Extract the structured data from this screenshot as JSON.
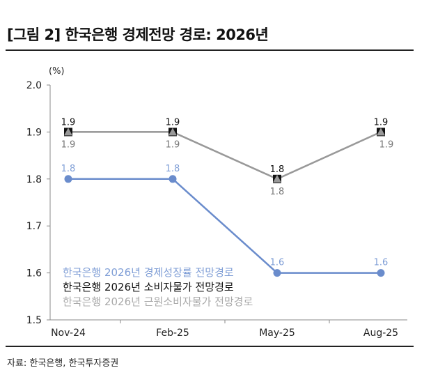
{
  "title": "[그림 2] 한국은행 경제전망 경로: 2026년",
  "source": "자료: 한국은행, 한국투자증권",
  "chart_data": {
    "type": "line",
    "unit_label": "(%)",
    "categories": [
      "Nov-24",
      "Feb-25",
      "May-25",
      "Aug-25"
    ],
    "ylim": [
      1.5,
      2.0
    ],
    "yticks": [
      "1.5",
      "1.6",
      "1.7",
      "1.8",
      "1.9",
      "2.0"
    ],
    "grid": false,
    "legend_position": "bottom-left",
    "series": [
      {
        "name": "한국은행 2026년 경제성장률 전망경로",
        "values": [
          1.8,
          1.8,
          1.6,
          1.6
        ],
        "color": "#6a8ccc",
        "marker": "circle"
      },
      {
        "name": "한국은행 2026년 소비자물가 전망경로",
        "values": [
          1.9,
          1.9,
          1.8,
          1.9
        ],
        "color": "#111111",
        "marker": "square"
      },
      {
        "name": "한국은행 2026년 근원소비자물가 전망경로",
        "values": [
          1.9,
          1.9,
          1.8,
          1.9
        ],
        "color": "#999999",
        "marker": "triangle"
      }
    ]
  }
}
